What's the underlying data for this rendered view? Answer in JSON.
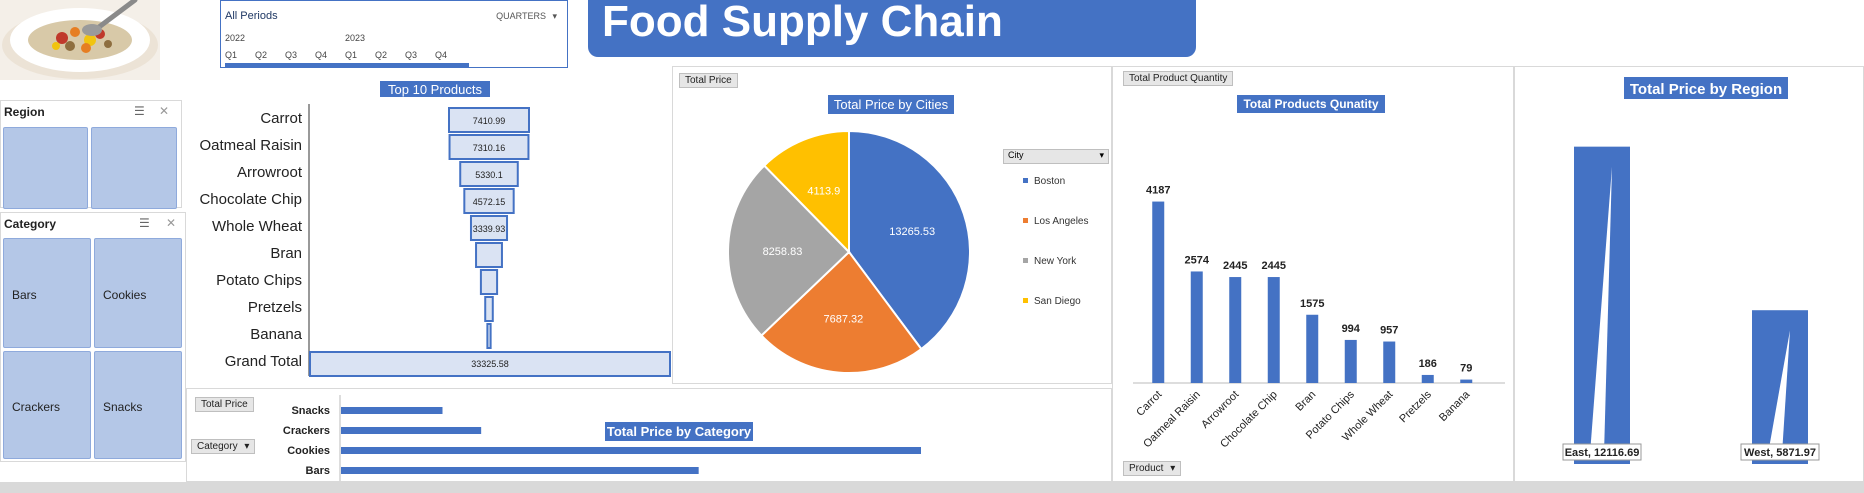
{
  "header": {
    "title": "Food Supply Chain"
  },
  "timeline": {
    "label": "All Periods",
    "level": "QUARTERS",
    "years": [
      "2022",
      "2023"
    ],
    "quarters": [
      "Q1",
      "Q2",
      "Q3",
      "Q4",
      "Q1",
      "Q2",
      "Q3",
      "Q4"
    ]
  },
  "region_slicer": {
    "title": "Region"
  },
  "category_slicer": {
    "title": "Category",
    "items": [
      "Bars",
      "Cookies",
      "Crackers",
      "Snacks"
    ]
  },
  "buttons": {
    "total_price": "Total Price",
    "total_price_2": "Total Price",
    "total_product_quantity": "Total Product Quantity",
    "category": "Category",
    "city": "City",
    "product": "Product"
  },
  "chart_data": [
    {
      "type": "bar",
      "title": "Top 10 Products",
      "categories": [
        "Carrot",
        "Oatmeal Raisin",
        "Arrowroot",
        "Chocolate Chip",
        "Whole Wheat",
        "Bran",
        "Potato Chips",
        "Pretzels",
        "Banana",
        "Grand Total"
      ],
      "values": [
        7410.99,
        7310.16,
        5330.1,
        4572.15,
        3339.93,
        2400,
        1500,
        700,
        300,
        33325.58
      ],
      "data_labels": [
        "7410.99",
        "7310.16",
        "5330.1",
        "4572.15",
        "3339.93",
        "",
        "",
        "",
        "",
        "33325.58"
      ]
    },
    {
      "type": "pie",
      "title": "Total Price by Cities",
      "legend_title": "City",
      "categories": [
        "Boston",
        "Los Angeles",
        "New York",
        "San Diego"
      ],
      "values": [
        13265.53,
        7687.32,
        8258.83,
        4113.9
      ],
      "colors": [
        "#4472c4",
        "#ed7d31",
        "#a5a5a5",
        "#ffc000"
      ]
    },
    {
      "type": "bar",
      "title": "Total  Products Qunatity",
      "categories": [
        "Carrot",
        "Oatmeal Raisin",
        "Arrowroot",
        "Chocolate Chip",
        "Bran",
        "Potato Chips",
        "Whole Wheat",
        "Pretzels",
        "Banana"
      ],
      "values": [
        4187,
        2574,
        2445,
        2445,
        1575,
        994,
        957,
        186,
        79
      ]
    },
    {
      "type": "bar",
      "title": "Total Price by  Region",
      "categories": [
        "East",
        "West"
      ],
      "values": [
        12116.69,
        5871.97
      ],
      "data_labels": [
        "East, 12116.69",
        "West, 5871.97"
      ]
    },
    {
      "type": "bar",
      "title": "Total Price  by Category",
      "categories": [
        "Snacks",
        "Crackers",
        "Cookies",
        "Bars"
      ],
      "values": [
        1050,
        1450,
        6000,
        3700
      ]
    }
  ],
  "colors": {
    "accent": "#4472c4",
    "tile": "#b4c7e7"
  }
}
